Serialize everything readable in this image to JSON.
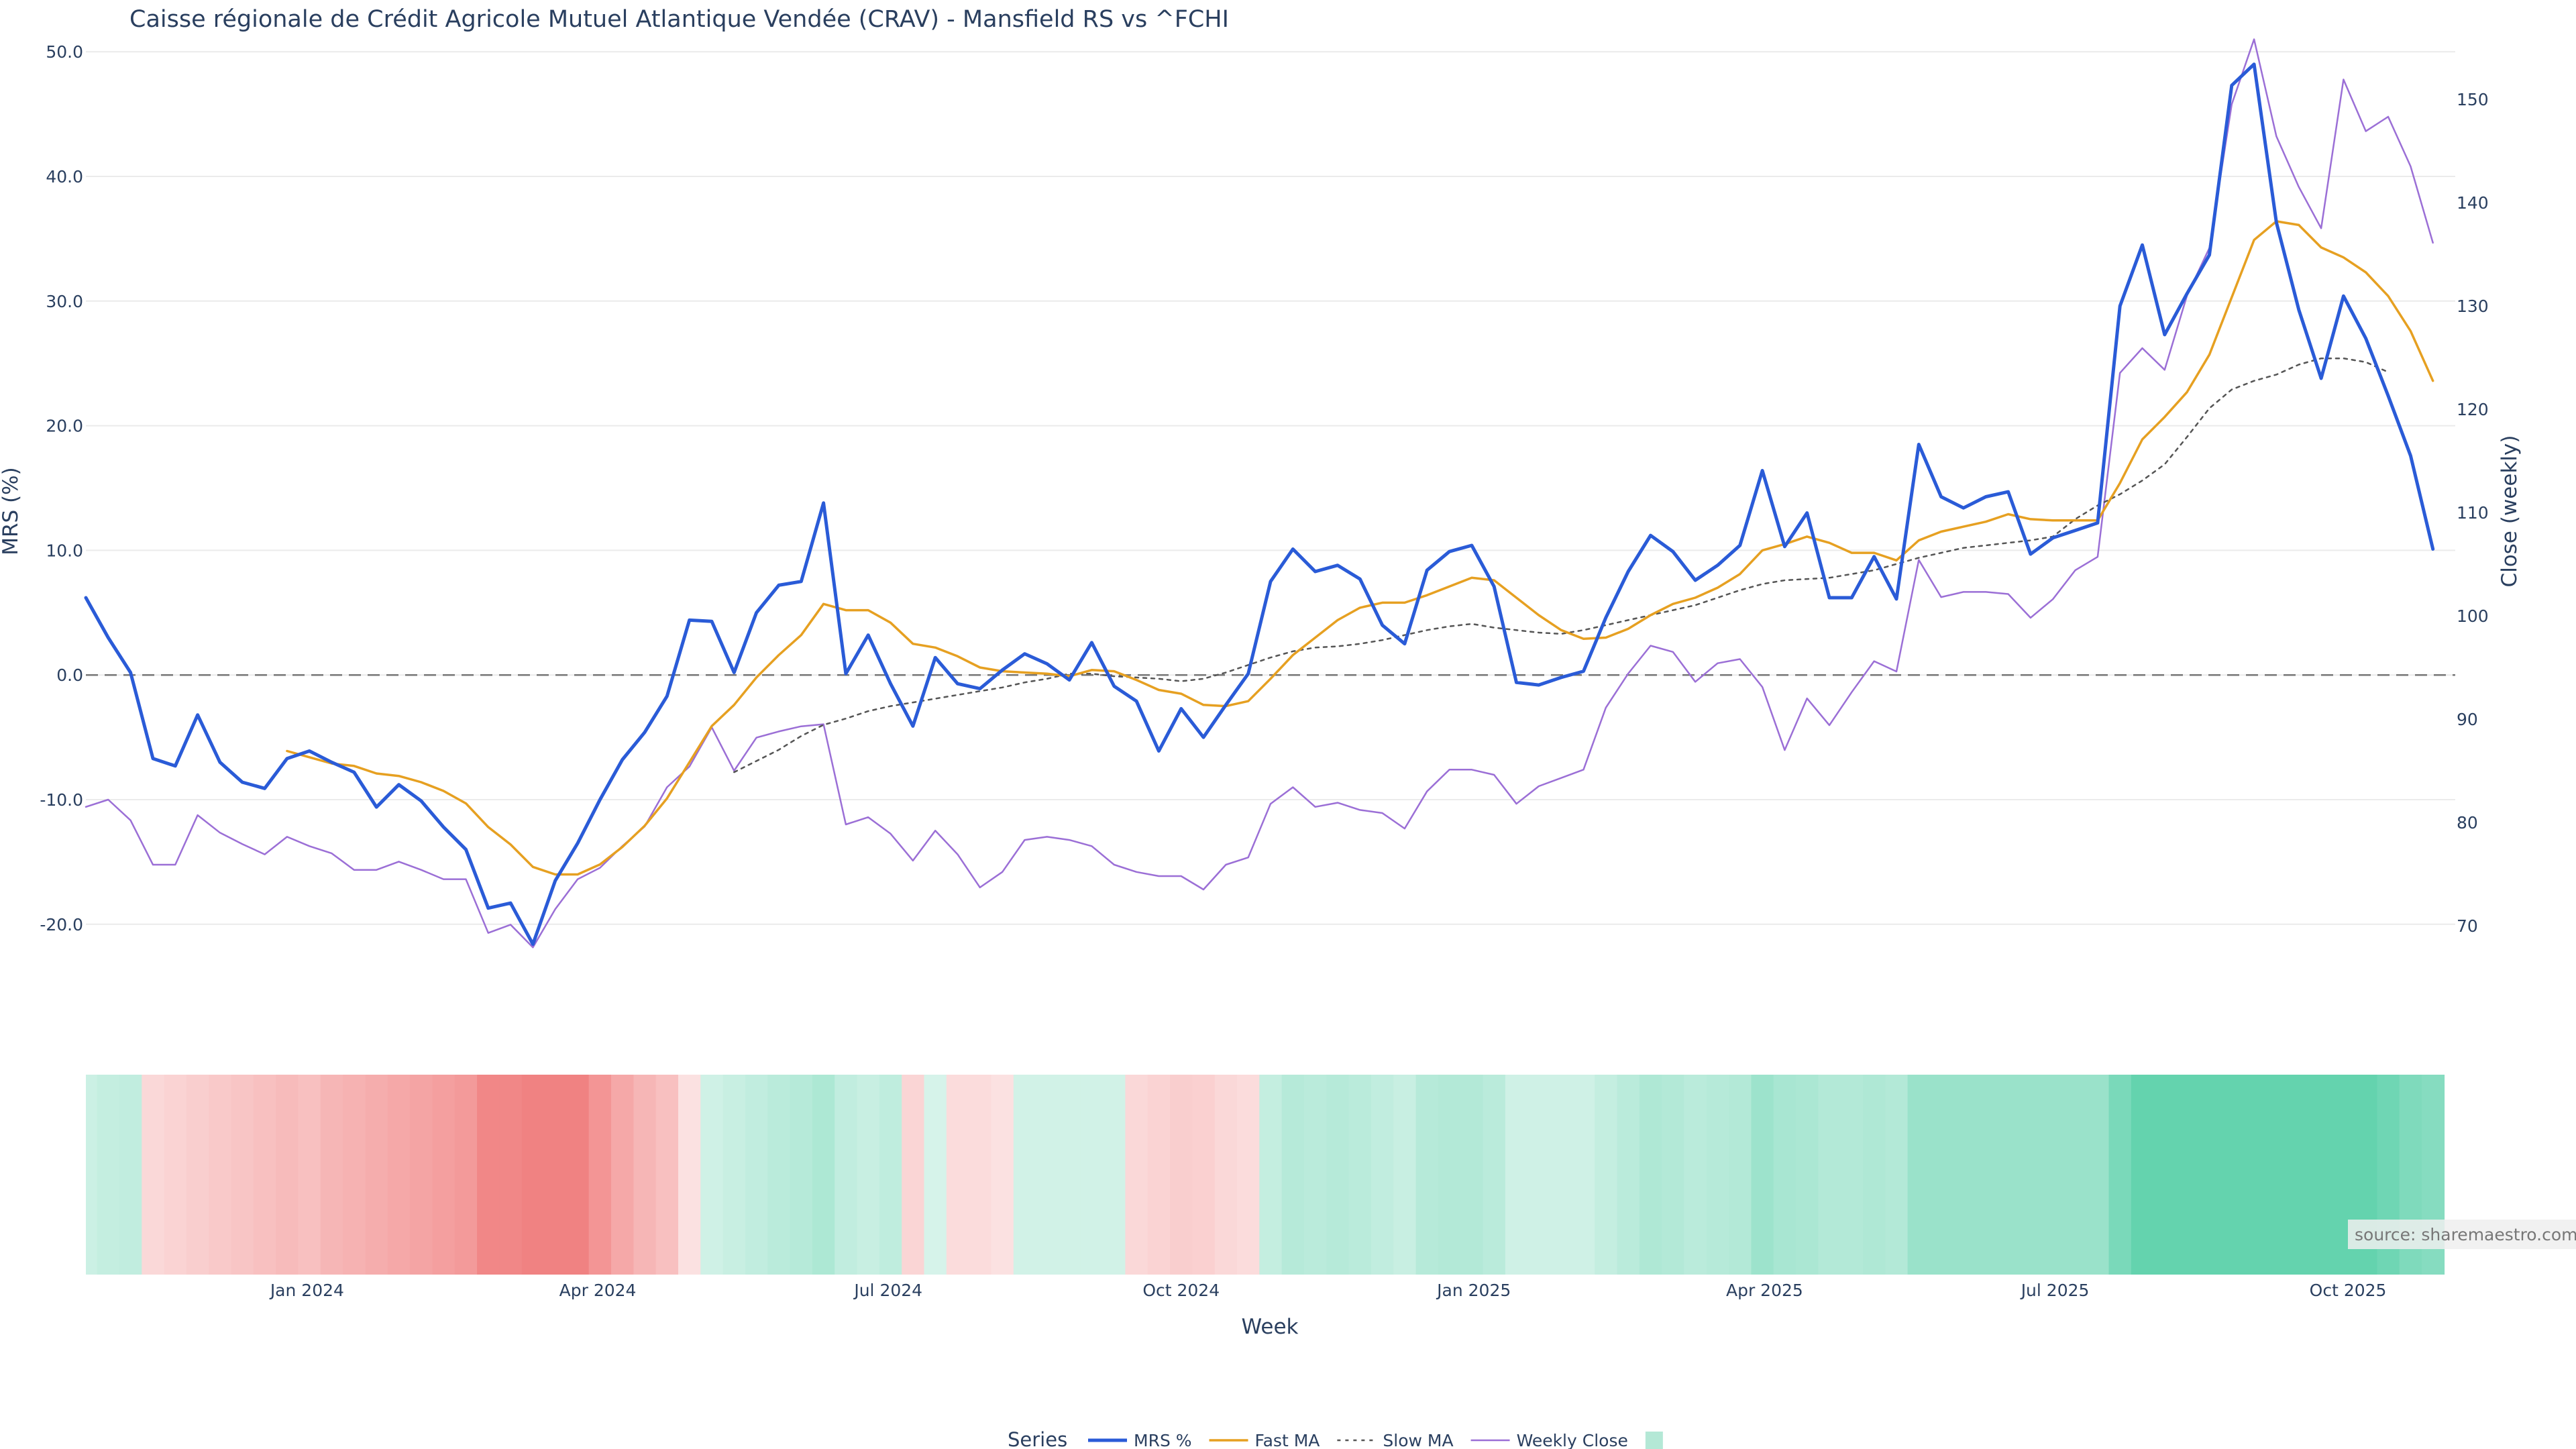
{
  "chart_data": {
    "type": "line",
    "title": "Caisse régionale de Crédit Agricole Mutuel Atlantique Vendée (CRAV) - Mansfield RS vs ^FCHI",
    "xlabel": "Week",
    "ylabel": "MRS (%)",
    "y2label": "Close (weekly)",
    "ylim": [
      -25.5,
      52
    ],
    "y2lim": [
      63.5,
      157
    ],
    "y_ticks": [
      "50.0",
      "40.0",
      "30.0",
      "20.0",
      "10.0",
      "0.0",
      "-10.0",
      "-20.0"
    ],
    "y_tick_values": [
      50,
      40,
      30,
      20,
      10,
      0,
      -10,
      -20
    ],
    "y2_ticks": [
      "150",
      "140",
      "130",
      "120",
      "110",
      "100",
      "90",
      "80",
      "70"
    ],
    "y2_tick_values": [
      150,
      140,
      130,
      120,
      110,
      100,
      90,
      80,
      70
    ],
    "x_range": [
      0,
      106
    ],
    "x_ticks": [
      "Jan 2024",
      "Apr 2024",
      "Jul 2024",
      "Oct 2024",
      "Jan 2025",
      "Apr 2025",
      "Jul 2025",
      "Oct 2025"
    ],
    "x_tick_positions": [
      9.9,
      22.9,
      35.9,
      49.0,
      62.1,
      75.1,
      88.1,
      101.2
    ],
    "zero_line": 0,
    "series": [
      {
        "name": "MRS %",
        "color": "#2a5bd7",
        "style": "solid",
        "width": 5,
        "values": [
          6.2,
          3,
          0.2,
          -6.7,
          -7.3,
          -3.2,
          -7,
          -8.6,
          -9.1,
          -6.7,
          -6.1,
          -7,
          -7.8,
          -10.6,
          -8.8,
          -10.1,
          -12.2,
          -14,
          -18.7,
          -18.3,
          -21.6,
          -16.5,
          -13.5,
          -10,
          -6.8,
          -4.6,
          -1.7,
          4.4,
          4.3,
          0.2,
          5,
          7.2,
          7.5,
          13.8,
          0.1,
          3.2,
          -0.7,
          -4.1,
          1.4,
          -0.7,
          -1.1,
          0.4,
          1.7,
          0.9,
          -0.4,
          2.6,
          -0.9,
          -2.1,
          -6.1,
          -2.7,
          -5,
          -2.4,
          0.1,
          7.5,
          10.1,
          8.3,
          8.8,
          7.7,
          4,
          2.5,
          8.4,
          9.9,
          10.4,
          7.1,
          -0.6,
          -0.8,
          -0.2,
          0.3,
          4.6,
          8.3,
          11.2,
          9.9,
          7.6,
          8.8,
          10.4,
          16.4,
          10.3,
          13,
          6.2,
          6.2,
          9.5,
          6.1,
          18.5,
          14.3,
          13.4,
          14.3,
          14.7,
          9.7,
          11,
          11.6,
          12.2,
          29.6,
          34.5,
          27.3,
          30.6,
          33.7,
          47.3,
          49,
          36.3,
          29.3,
          23.8,
          30.4,
          27,
          22.4,
          17.6,
          10.1
        ]
      },
      {
        "name": "Fast MA",
        "color": "#e6a021",
        "style": "solid",
        "width": 3.5,
        "start": 9,
        "values": [
          -6.1,
          -6.6,
          -7.1,
          -7.3,
          -7.9,
          -8.1,
          -8.6,
          -9.3,
          -10.3,
          -12.2,
          -13.6,
          -15.4,
          -16,
          -16,
          -15.2,
          -13.8,
          -12.1,
          -9.9,
          -7,
          -4.1,
          -2.4,
          -0.2,
          1.6,
          3.2,
          5.7,
          5.2,
          5.2,
          4.2,
          2.5,
          2.2,
          1.5,
          0.6,
          0.3,
          0.2,
          0.1,
          -0.1,
          0.4,
          0.3,
          -0.4,
          -1.2,
          -1.5,
          -2.4,
          -2.5,
          -2.1,
          -0.3,
          1.6,
          3,
          4.4,
          5.4,
          5.8,
          5.8,
          6.4,
          7.1,
          7.8,
          7.6,
          6.2,
          4.8,
          3.6,
          2.9,
          3,
          3.7,
          4.8,
          5.7,
          6.2,
          7,
          8.1,
          10,
          10.5,
          11.1,
          10.6,
          9.8,
          9.8,
          9.2,
          10.8,
          11.5,
          11.9,
          12.3,
          12.9,
          12.5,
          12.4,
          12.4,
          12.4,
          15.4,
          18.9,
          20.7,
          22.7,
          25.7,
          30.3,
          34.9,
          36.4,
          36.1,
          34.3,
          33.5,
          32.3,
          30.4,
          27.6,
          23.6
        ]
      },
      {
        "name": "Slow MA",
        "color": "#555555",
        "style": "dotted",
        "width": 2.5,
        "start": 29,
        "values": [
          -7.8,
          -6.9,
          -6,
          -4.9,
          -4,
          -3.5,
          -2.9,
          -2.5,
          -2.2,
          -1.9,
          -1.6,
          -1.3,
          -1,
          -0.6,
          -0.3,
          0.1,
          0.1,
          -0.1,
          -0.2,
          -0.3,
          -0.5,
          -0.3,
          0.2,
          0.8,
          1.4,
          1.9,
          2.2,
          2.3,
          2.5,
          2.8,
          3.2,
          3.6,
          3.9,
          4.1,
          3.8,
          3.6,
          3.4,
          3.3,
          3.6,
          4,
          4.4,
          4.8,
          5.2,
          5.6,
          6.2,
          6.8,
          7.3,
          7.6,
          7.7,
          7.8,
          8.1,
          8.4,
          8.9,
          9.4,
          9.8,
          10.2,
          10.4,
          10.6,
          10.8,
          11.1,
          12.5,
          13.6,
          14.5,
          15.6,
          16.9,
          19.1,
          21.4,
          22.9,
          23.6,
          24.1,
          24.9,
          25.4,
          25.4,
          25.1,
          24.3
        ]
      },
      {
        "name": "Weekly Close",
        "color": "#9b6fd6",
        "style": "solid",
        "width": 2.5,
        "axis": "y2",
        "values": [
          81.5,
          82.2,
          80.2,
          75.9,
          75.9,
          80.7,
          79,
          77.9,
          76.9,
          78.6,
          77.7,
          77,
          75.4,
          75.4,
          76.2,
          75.4,
          74.5,
          74.5,
          69.3,
          70.1,
          67.9,
          71.6,
          74.5,
          75.6,
          77.7,
          79.6,
          83.4,
          85.4,
          89.2,
          85,
          88.2,
          88.8,
          89.3,
          89.5,
          79.8,
          80.5,
          78.9,
          76.3,
          79.2,
          76.9,
          73.7,
          75.2,
          78.3,
          78.6,
          78.3,
          77.7,
          75.9,
          75.2,
          74.8,
          74.8,
          73.5,
          75.9,
          76.6,
          81.8,
          83.4,
          81.5,
          81.9,
          81.2,
          80.9,
          79.4,
          83,
          85.1,
          85.1,
          84.6,
          81.8,
          83.5,
          84.3,
          85.1,
          91.1,
          94.4,
          97.1,
          96.5,
          93.6,
          95.4,
          95.8,
          93.1,
          87,
          92,
          89.4,
          92.6,
          95.6,
          94.6,
          105.4,
          101.8,
          102.3,
          102.3,
          102.1,
          99.8,
          101.6,
          104.4,
          105.7,
          123.5,
          125.9,
          123.8,
          131,
          135.6,
          149.5,
          155.8,
          146.4,
          141.5,
          137.5,
          151.9,
          146.9,
          148.3,
          143.5,
          136.1
        ]
      }
    ],
    "heatmap_strip": {
      "ranges": [
        -22,
        50
      ],
      "values": [
        3.5,
        5.5,
        6.5,
        -3.5,
        -4.5,
        -5.5,
        -6.5,
        -7.5,
        -8.5,
        -9.5,
        -8.5,
        -10.5,
        -11.5,
        -12.5,
        -13.5,
        -14.5,
        -15.5,
        -16.5,
        -20.5,
        -20.5,
        -21.5,
        -21.5,
        -21.5,
        -17.5,
        -13.5,
        -10.5,
        -8.5,
        -1.5,
        2.5,
        4.5,
        6.5,
        8.5,
        9.5,
        12,
        6.5,
        4.5,
        7,
        -4,
        0.5,
        -2.5,
        -2.5,
        -1.5,
        2,
        2,
        2,
        2,
        2,
        -3.5,
        -4.5,
        -5.5,
        -5,
        -3.5,
        -2.5,
        5.5,
        9.5,
        8.5,
        9.5,
        8.5,
        6.5,
        4.5,
        9.5,
        10.5,
        10.5,
        8.5,
        2.5,
        2.5,
        2.5,
        2.5,
        5.5,
        8.5,
        11.5,
        10.5,
        8.5,
        9.5,
        10.5,
        16.5,
        13.5,
        12.5,
        10.5,
        10.5,
        11.5,
        10.5,
        17.5,
        17.5,
        17.5,
        17.5,
        17.5,
        17.5,
        17.5,
        17.5,
        17.5,
        26.5,
        32.5,
        32.5,
        32.5,
        32.5,
        32.5,
        32.5,
        32.5,
        32.5,
        32.5,
        32.5,
        32.5,
        29.5,
        25,
        23
      ]
    },
    "legend": {
      "title": "Series",
      "entries": [
        "MRS %",
        "Fast MA",
        "Slow MA",
        "Weekly Close"
      ],
      "placement": "bottom-center"
    },
    "annotation": "source: sharemaestro.com"
  }
}
